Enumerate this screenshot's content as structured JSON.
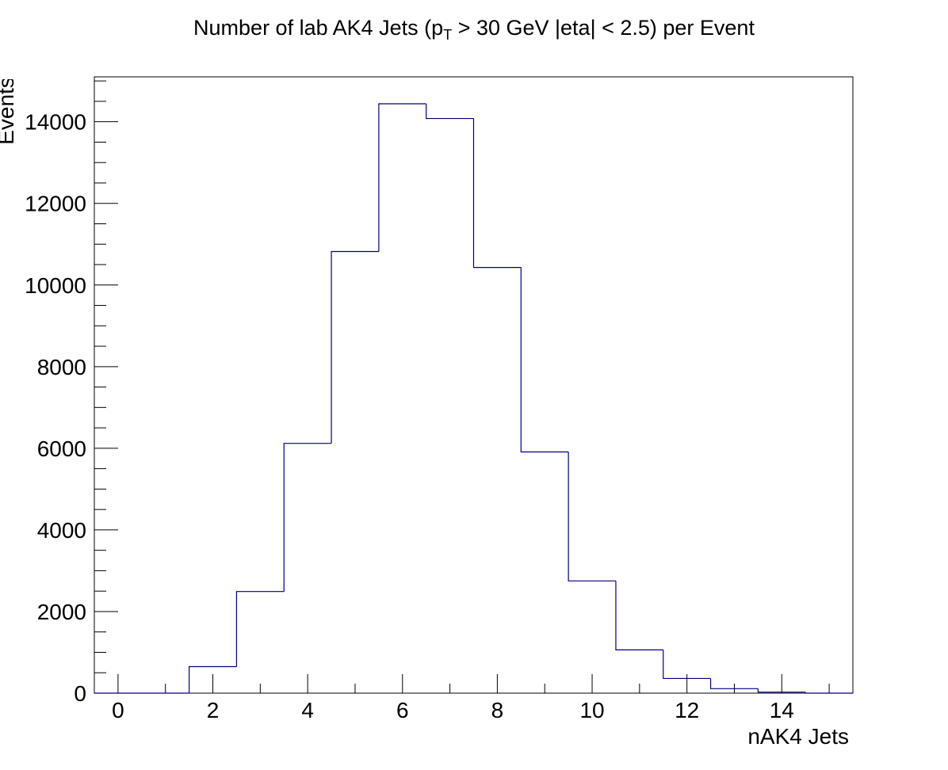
{
  "chart_data": {
    "type": "bar",
    "title_main": "Number of lab AK4 Jets (p",
    "title_sub": "T",
    "title_rest": " > 30 GeV |eta| < 2.5) per Event",
    "xlabel": "nAK4 Jets",
    "ylabel": "Events",
    "xlim": [
      -0.5,
      15.5
    ],
    "ylim": [
      0,
      15100
    ],
    "x_ticks": [
      0,
      2,
      4,
      6,
      8,
      10,
      12,
      14
    ],
    "y_ticks": [
      0,
      2000,
      4000,
      6000,
      8000,
      10000,
      12000,
      14000
    ],
    "bins": [
      {
        "x": 0,
        "value": 0
      },
      {
        "x": 1,
        "value": 0
      },
      {
        "x": 2,
        "value": 650
      },
      {
        "x": 3,
        "value": 2490
      },
      {
        "x": 4,
        "value": 6120
      },
      {
        "x": 5,
        "value": 10820
      },
      {
        "x": 6,
        "value": 14440
      },
      {
        "x": 7,
        "value": 14080
      },
      {
        "x": 8,
        "value": 10430
      },
      {
        "x": 9,
        "value": 5910
      },
      {
        "x": 10,
        "value": 2750
      },
      {
        "x": 11,
        "value": 1060
      },
      {
        "x": 12,
        "value": 360
      },
      {
        "x": 13,
        "value": 110
      },
      {
        "x": 14,
        "value": 25
      },
      {
        "x": 15,
        "value": 0
      }
    ],
    "line_color": "#000080",
    "frame_color": "#000000",
    "legend": "none",
    "grid": false
  }
}
